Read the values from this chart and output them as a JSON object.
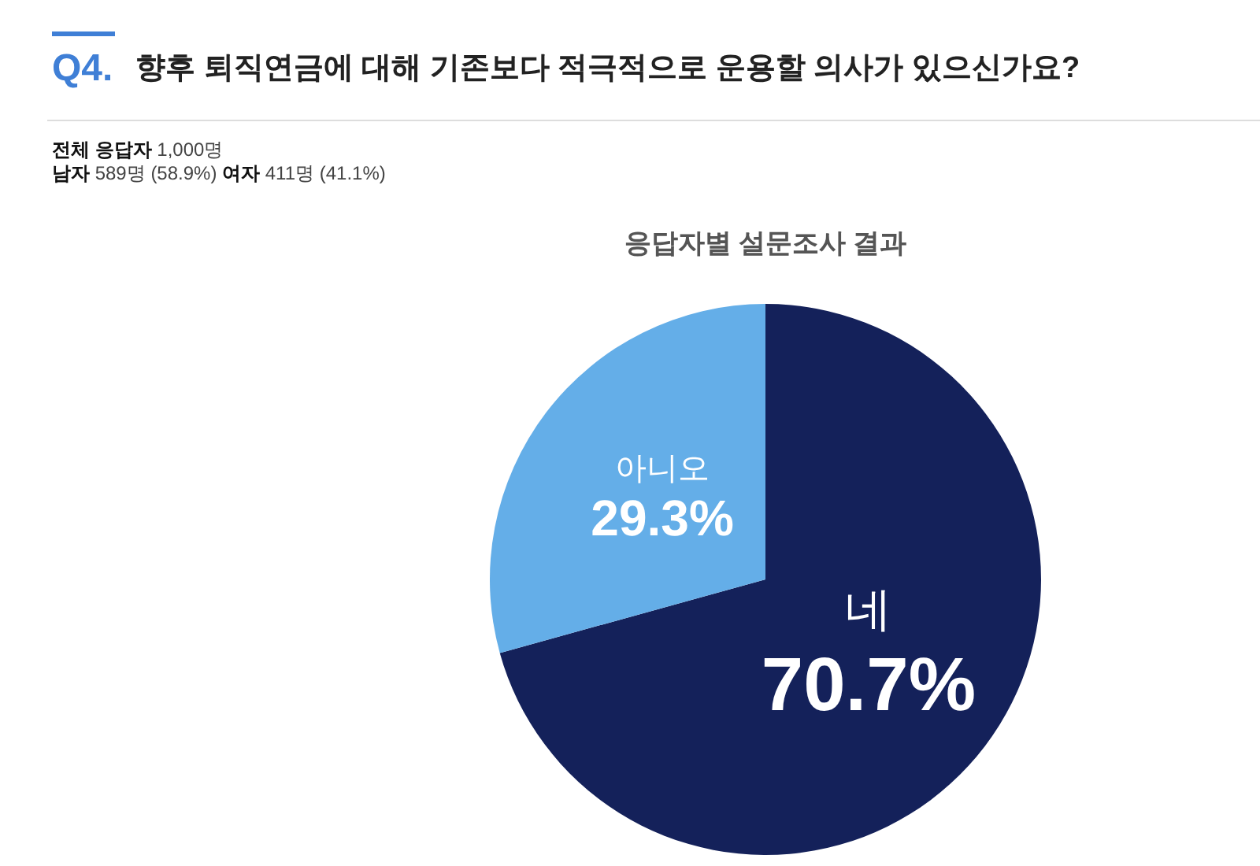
{
  "chart_data": {
    "type": "pie",
    "title": "향후 퇴직연금에 대해 기존보다 적극적으로 운용할 의사가 있으신가요?",
    "subtitle": "**전체 응답자** 1,000명\n**남자** 589명 (58.9%) **여자** 411명 (41.1%)",
    "annotations": [
      "Q4."
    ],
    "legend_title": "응답자별 설문조사 결과",
    "categories": [
      "네",
      "아니오"
    ],
    "values": [
      70.7,
      29.3
    ],
    "colors": [
      "#14215a",
      "#64aee8"
    ],
    "value_labels": [
      "70.7%",
      "29.3%"
    ]
  }
}
